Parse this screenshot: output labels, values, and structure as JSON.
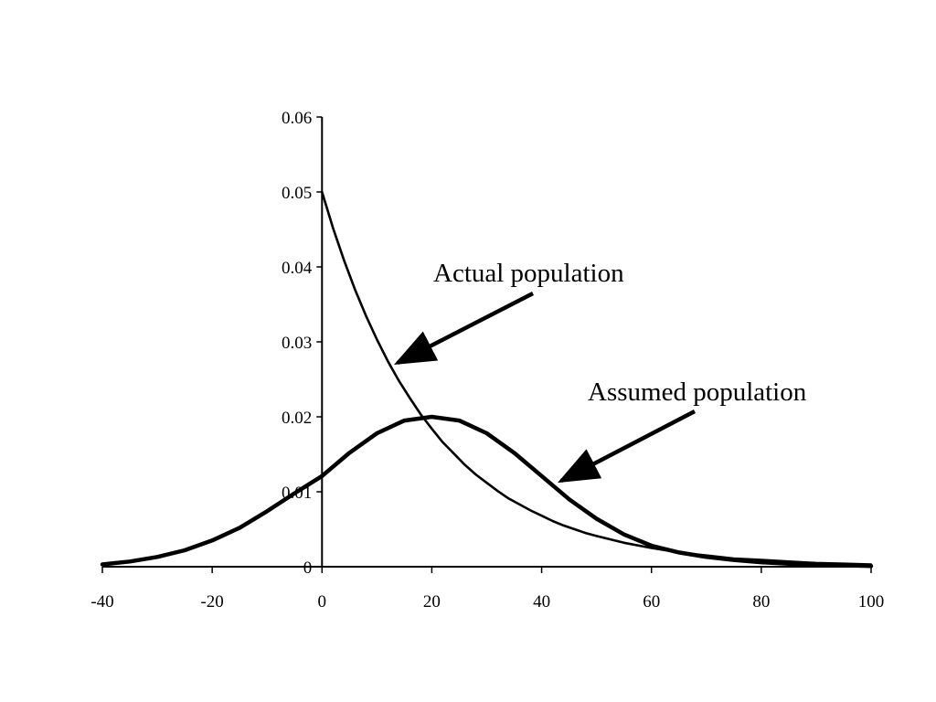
{
  "chart_data": {
    "type": "line",
    "title": "",
    "xlabel": "",
    "ylabel": "",
    "xlim": [
      -40,
      100
    ],
    "ylim": [
      0,
      0.06
    ],
    "x_ticks": [
      "-40",
      "-20",
      "0",
      "20",
      "40",
      "60",
      "80",
      "100"
    ],
    "y_ticks": [
      "0",
      "0.01",
      "0.02",
      "0.03",
      "0.04",
      "0.05",
      "0.06"
    ],
    "grid": false,
    "legend": "none",
    "series": [
      {
        "key": "actual",
        "x": [
          0,
          2,
          4,
          6,
          8,
          10,
          12,
          14,
          16,
          18,
          20,
          22,
          24,
          26,
          28,
          30,
          32,
          34,
          36,
          38,
          40,
          42,
          44,
          46,
          48,
          50,
          55,
          60,
          65,
          70,
          75,
          80,
          85,
          90,
          95,
          100
        ],
        "values": [
          0.05,
          0.0452,
          0.0409,
          0.037,
          0.0335,
          0.0303,
          0.0274,
          0.0248,
          0.0225,
          0.0203,
          0.0184,
          0.0166,
          0.0151,
          0.0136,
          0.0123,
          0.0112,
          0.0101,
          0.0091,
          0.0083,
          0.0075,
          0.0068,
          0.0061,
          0.0055,
          0.005,
          0.0045,
          0.0041,
          0.0032,
          0.0025,
          0.0019,
          0.0015,
          0.0011,
          0.0009,
          0.0007,
          0.0005,
          0.0004,
          0.0003
        ]
      },
      {
        "key": "assumed",
        "x": [
          -40,
          -35,
          -30,
          -25,
          -20,
          -15,
          -10,
          -5,
          0,
          5,
          10,
          15,
          20,
          25,
          30,
          35,
          40,
          45,
          50,
          55,
          60,
          65,
          70,
          75,
          80,
          85,
          90,
          95,
          100
        ],
        "values": [
          0.0003,
          0.0007,
          0.0013,
          0.0022,
          0.0035,
          0.0052,
          0.0074,
          0.0098,
          0.0121,
          0.0152,
          0.0178,
          0.0195,
          0.02,
          0.0195,
          0.0178,
          0.0152,
          0.0121,
          0.009,
          0.0064,
          0.0043,
          0.0028,
          0.0019,
          0.0013,
          0.0009,
          0.0006,
          0.0004,
          0.0003,
          0.0002,
          0.0001
        ]
      }
    ],
    "annotations": [
      {
        "text": "Actual population",
        "target_series": "actual"
      },
      {
        "text": "Assumed population",
        "target_series": "assumed"
      }
    ]
  }
}
